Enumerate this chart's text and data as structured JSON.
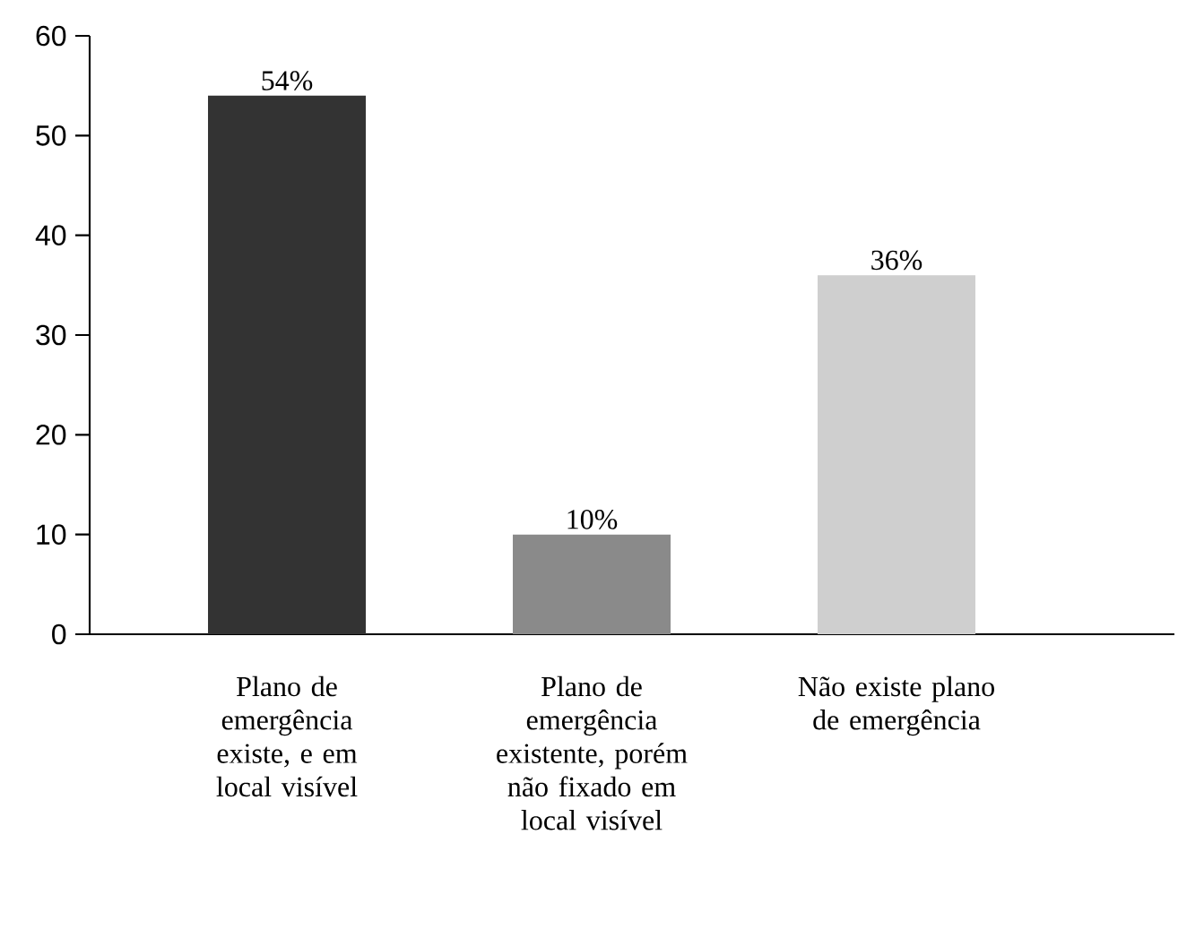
{
  "chart_data": {
    "type": "bar",
    "categories": [
      "Plano de emergência existe, e em local visível",
      "Plano de emergência existente, porém não fixado em local visível",
      "Não existe plano de emergência"
    ],
    "values": [
      54,
      10,
      36
    ],
    "colors": [
      "#333333",
      "#8a8a8a",
      "#cfcfcf"
    ],
    "value_labels": [
      "54%",
      "10%",
      "36%"
    ],
    "ylim": [
      0,
      60
    ],
    "yticks": [
      0,
      10,
      20,
      30,
      40,
      50,
      60
    ],
    "grid": false
  }
}
